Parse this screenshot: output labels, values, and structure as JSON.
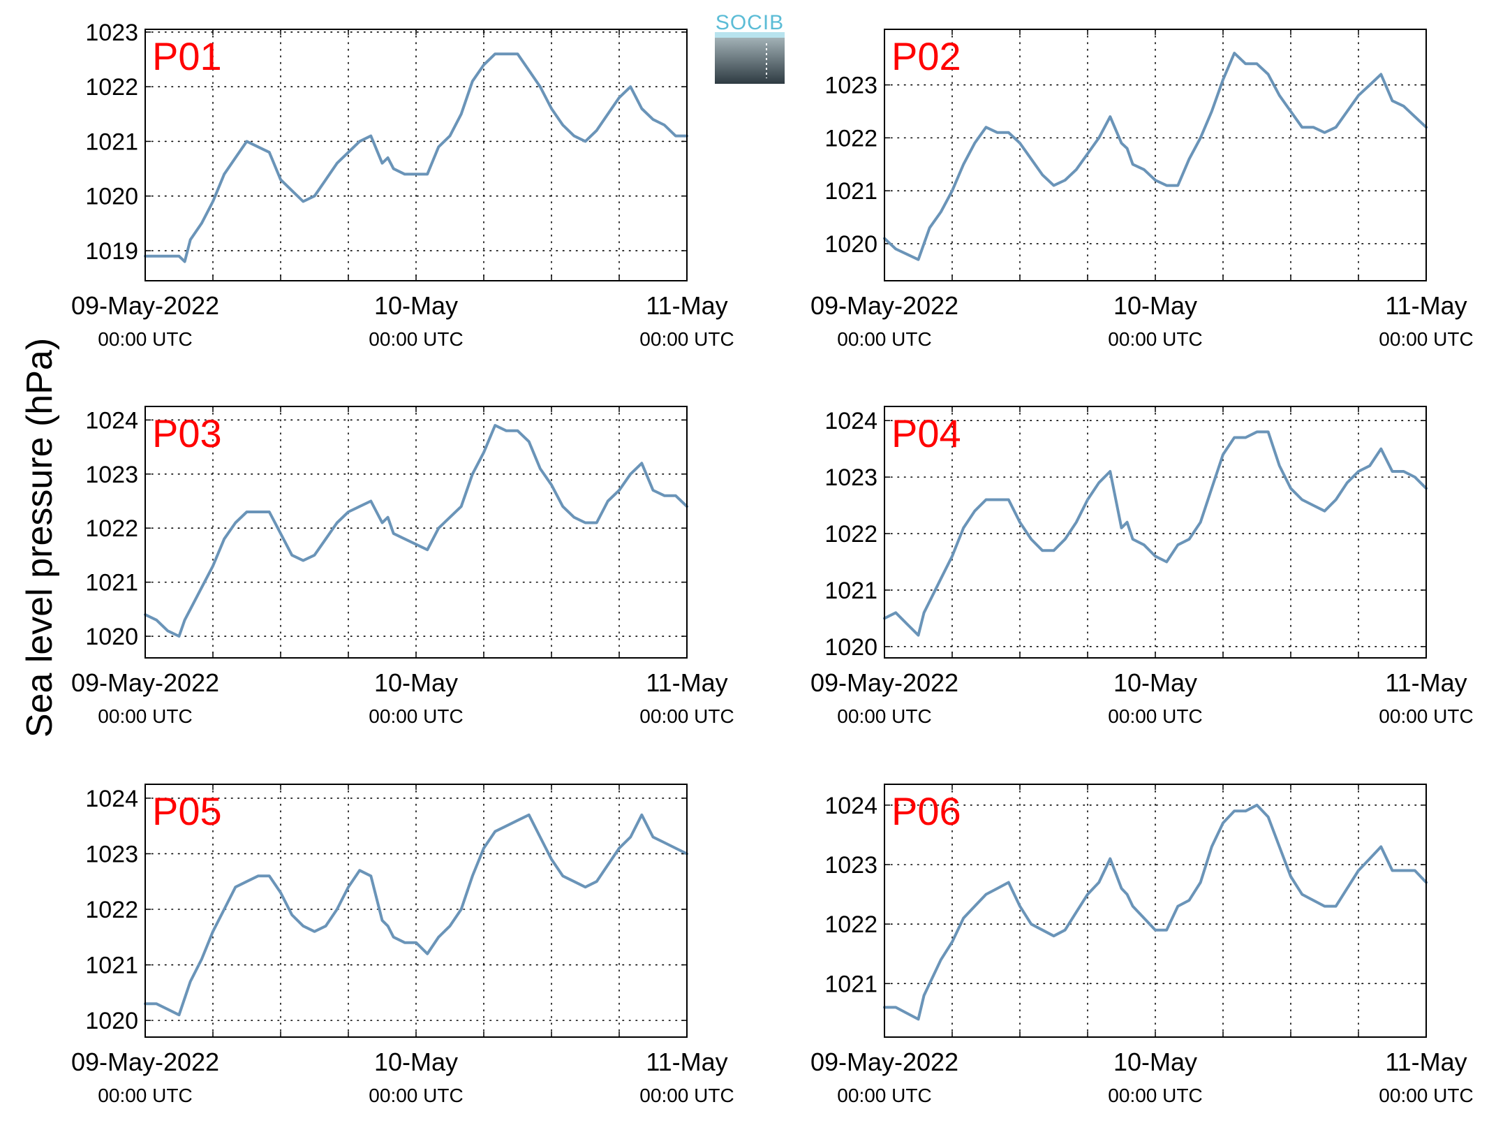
{
  "figure": {
    "ylabel": "Sea level pressure (hPa)",
    "logo_text": "SOCIB",
    "colors": {
      "line": "#6a94b8",
      "panel_label": "#ff0000",
      "axis": "#000000",
      "logo_text": "#5bbcd6",
      "logo_top": "#a9b8bd",
      "logo_bottom": "#2e3b42"
    }
  },
  "chart_data": [
    {
      "type": "line",
      "label": "P01",
      "ylim": [
        1018.45,
        1023.05
      ],
      "yticks": [
        1019,
        1020,
        1021,
        1022,
        1023
      ],
      "xlim": [
        0,
        48
      ],
      "xticks_major": [
        0,
        24,
        48
      ],
      "grid": true,
      "xticklabels": [
        [
          "09-May-2022",
          "00:00 UTC"
        ],
        [
          "10-May",
          "00:00 UTC"
        ],
        [
          "11-May",
          "00:00 UTC"
        ]
      ],
      "x": [
        0,
        1,
        2,
        3,
        3.5,
        4,
        5,
        6,
        7,
        8,
        9,
        10,
        11,
        12,
        13,
        14,
        15,
        16,
        17,
        18,
        19,
        20,
        21,
        21.5,
        22,
        23,
        24,
        25,
        26,
        27,
        28,
        29,
        30,
        31,
        32,
        33,
        34,
        35,
        36,
        37,
        38,
        39,
        40,
        41,
        42,
        43,
        44,
        45,
        46,
        47,
        48
      ],
      "y": [
        1018.9,
        1018.9,
        1018.9,
        1018.9,
        1018.8,
        1019.2,
        1019.5,
        1019.9,
        1020.4,
        1020.7,
        1021.0,
        1020.9,
        1020.8,
        1020.3,
        1020.1,
        1019.9,
        1020.0,
        1020.3,
        1020.6,
        1020.8,
        1021.0,
        1021.1,
        1020.6,
        1020.7,
        1020.5,
        1020.4,
        1020.4,
        1020.4,
        1020.9,
        1021.1,
        1021.5,
        1022.1,
        1022.4,
        1022.6,
        1022.6,
        1022.6,
        1022.3,
        1022.0,
        1021.6,
        1021.3,
        1021.1,
        1021.0,
        1021.2,
        1021.5,
        1021.8,
        1022.0,
        1021.6,
        1021.4,
        1021.3,
        1021.1,
        1021.1
      ]
    },
    {
      "type": "line",
      "label": "P02",
      "ylim": [
        1019.3,
        1024.05
      ],
      "yticks": [
        1020,
        1021,
        1022,
        1023
      ],
      "xlim": [
        0,
        48
      ],
      "xticks_major": [
        0,
        24,
        48
      ],
      "grid": true,
      "xticklabels": [
        [
          "09-May-2022",
          "00:00 UTC"
        ],
        [
          "10-May",
          "00:00 UTC"
        ],
        [
          "11-May",
          "00:00 UTC"
        ]
      ],
      "x": [
        0,
        1,
        2,
        3,
        3.5,
        4,
        5,
        6,
        7,
        8,
        9,
        10,
        11,
        12,
        13,
        14,
        15,
        16,
        17,
        18,
        19,
        20,
        21,
        21.5,
        22,
        23,
        24,
        25,
        26,
        27,
        28,
        29,
        30,
        31,
        32,
        33,
        34,
        35,
        36,
        37,
        38,
        39,
        40,
        41,
        42,
        43,
        44,
        45,
        46,
        47,
        48
      ],
      "y": [
        1020.1,
        1019.9,
        1019.8,
        1019.7,
        1020.0,
        1020.3,
        1020.6,
        1021.0,
        1021.5,
        1021.9,
        1022.2,
        1022.1,
        1022.1,
        1021.9,
        1021.6,
        1021.3,
        1021.1,
        1021.2,
        1021.4,
        1021.7,
        1022.0,
        1022.4,
        1021.9,
        1021.8,
        1021.5,
        1021.4,
        1021.2,
        1021.1,
        1021.1,
        1021.6,
        1022.0,
        1022.5,
        1023.1,
        1023.6,
        1023.4,
        1023.4,
        1023.2,
        1022.8,
        1022.5,
        1022.2,
        1022.2,
        1022.1,
        1022.2,
        1022.5,
        1022.8,
        1023.0,
        1023.2,
        1022.7,
        1022.6,
        1022.4,
        1022.2
      ]
    },
    {
      "type": "line",
      "label": "P03",
      "ylim": [
        1019.6,
        1024.25
      ],
      "yticks": [
        1020,
        1021,
        1022,
        1023,
        1024
      ],
      "xlim": [
        0,
        48
      ],
      "xticks_major": [
        0,
        24,
        48
      ],
      "grid": true,
      "xticklabels": [
        [
          "09-May-2022",
          "00:00 UTC"
        ],
        [
          "10-May",
          "00:00 UTC"
        ],
        [
          "11-May",
          "00:00 UTC"
        ]
      ],
      "x": [
        0,
        1,
        2,
        3,
        3.5,
        4,
        5,
        6,
        7,
        8,
        9,
        10,
        11,
        12,
        13,
        14,
        15,
        16,
        17,
        18,
        19,
        20,
        21,
        21.5,
        22,
        23,
        24,
        25,
        26,
        27,
        28,
        29,
        30,
        31,
        32,
        33,
        34,
        35,
        36,
        37,
        38,
        39,
        40,
        41,
        42,
        43,
        44,
        45,
        46,
        47,
        48
      ],
      "y": [
        1020.4,
        1020.3,
        1020.1,
        1020.0,
        1020.3,
        1020.5,
        1020.9,
        1021.3,
        1021.8,
        1022.1,
        1022.3,
        1022.3,
        1022.3,
        1021.9,
        1021.5,
        1021.4,
        1021.5,
        1021.8,
        1022.1,
        1022.3,
        1022.4,
        1022.5,
        1022.1,
        1022.2,
        1021.9,
        1021.8,
        1021.7,
        1021.6,
        1022.0,
        1022.2,
        1022.4,
        1023.0,
        1023.4,
        1023.9,
        1023.8,
        1023.8,
        1023.6,
        1023.1,
        1022.8,
        1022.4,
        1022.2,
        1022.1,
        1022.1,
        1022.5,
        1022.7,
        1023.0,
        1023.2,
        1022.7,
        1022.6,
        1022.6,
        1022.4
      ]
    },
    {
      "type": "line",
      "label": "P04",
      "ylim": [
        1019.8,
        1024.25
      ],
      "yticks": [
        1020,
        1021,
        1022,
        1023,
        1024
      ],
      "xlim": [
        0,
        48
      ],
      "xticks_major": [
        0,
        24,
        48
      ],
      "grid": true,
      "xticklabels": [
        [
          "09-May-2022",
          "00:00 UTC"
        ],
        [
          "10-May",
          "00:00 UTC"
        ],
        [
          "11-May",
          "00:00 UTC"
        ]
      ],
      "x": [
        0,
        1,
        2,
        3,
        3.5,
        4,
        5,
        6,
        7,
        8,
        9,
        10,
        11,
        12,
        13,
        14,
        15,
        16,
        17,
        18,
        19,
        20,
        21,
        21.5,
        22,
        23,
        24,
        25,
        26,
        27,
        28,
        29,
        30,
        31,
        32,
        33,
        34,
        35,
        36,
        37,
        38,
        39,
        40,
        41,
        42,
        43,
        44,
        45,
        46,
        47,
        48
      ],
      "y": [
        1020.5,
        1020.6,
        1020.4,
        1020.2,
        1020.6,
        1020.8,
        1021.2,
        1021.6,
        1022.1,
        1022.4,
        1022.6,
        1022.6,
        1022.6,
        1022.2,
        1021.9,
        1021.7,
        1021.7,
        1021.9,
        1022.2,
        1022.6,
        1022.9,
        1023.1,
        1022.1,
        1022.2,
        1021.9,
        1021.8,
        1021.6,
        1021.5,
        1021.8,
        1021.9,
        1022.2,
        1022.8,
        1023.4,
        1023.7,
        1023.7,
        1023.8,
        1023.8,
        1023.2,
        1022.8,
        1022.6,
        1022.5,
        1022.4,
        1022.6,
        1022.9,
        1023.1,
        1023.2,
        1023.5,
        1023.1,
        1023.1,
        1023.0,
        1022.8
      ]
    },
    {
      "type": "line",
      "label": "P05",
      "ylim": [
        1019.7,
        1024.25
      ],
      "yticks": [
        1020,
        1021,
        1022,
        1023,
        1024
      ],
      "xlim": [
        0,
        48
      ],
      "xticks_major": [
        0,
        24,
        48
      ],
      "grid": true,
      "xticklabels": [
        [
          "09-May-2022",
          "00:00 UTC"
        ],
        [
          "10-May",
          "00:00 UTC"
        ],
        [
          "11-May",
          "00:00 UTC"
        ]
      ],
      "x": [
        0,
        1,
        2,
        3,
        3.5,
        4,
        5,
        6,
        7,
        8,
        9,
        10,
        11,
        12,
        13,
        14,
        15,
        16,
        17,
        18,
        19,
        20,
        21,
        21.5,
        22,
        23,
        24,
        25,
        26,
        27,
        28,
        29,
        30,
        31,
        32,
        33,
        34,
        35,
        36,
        37,
        38,
        39,
        40,
        41,
        42,
        43,
        44,
        45,
        46,
        47,
        48
      ],
      "y": [
        1020.3,
        1020.3,
        1020.2,
        1020.1,
        1020.4,
        1020.7,
        1021.1,
        1021.6,
        1022.0,
        1022.4,
        1022.5,
        1022.6,
        1022.6,
        1022.3,
        1021.9,
        1021.7,
        1021.6,
        1021.7,
        1022.0,
        1022.4,
        1022.7,
        1022.6,
        1021.8,
        1021.7,
        1021.5,
        1021.4,
        1021.4,
        1021.2,
        1021.5,
        1021.7,
        1022.0,
        1022.6,
        1023.1,
        1023.4,
        1023.5,
        1023.6,
        1023.7,
        1023.3,
        1022.9,
        1022.6,
        1022.5,
        1022.4,
        1022.5,
        1022.8,
        1023.1,
        1023.3,
        1023.7,
        1023.3,
        1023.2,
        1023.1,
        1023.0
      ]
    },
    {
      "type": "line",
      "label": "P06",
      "ylim": [
        1020.1,
        1024.35
      ],
      "yticks": [
        1021,
        1022,
        1023,
        1024
      ],
      "xlim": [
        0,
        48
      ],
      "xticks_major": [
        0,
        24,
        48
      ],
      "grid": true,
      "xticklabels": [
        [
          "09-May-2022",
          "00:00 UTC"
        ],
        [
          "10-May",
          "00:00 UTC"
        ],
        [
          "11-May",
          "00:00 UTC"
        ]
      ],
      "x": [
        0,
        1,
        2,
        3,
        3.5,
        4,
        5,
        6,
        7,
        8,
        9,
        10,
        11,
        12,
        13,
        14,
        15,
        16,
        17,
        18,
        19,
        20,
        21,
        21.5,
        22,
        23,
        24,
        25,
        26,
        27,
        28,
        29,
        30,
        31,
        32,
        33,
        34,
        35,
        36,
        37,
        38,
        39,
        40,
        41,
        42,
        43,
        44,
        45,
        46,
        47,
        48
      ],
      "y": [
        1020.6,
        1020.6,
        1020.5,
        1020.4,
        1020.8,
        1021.0,
        1021.4,
        1021.7,
        1022.1,
        1022.3,
        1022.5,
        1022.6,
        1022.7,
        1022.3,
        1022.0,
        1021.9,
        1021.8,
        1021.9,
        1022.2,
        1022.5,
        1022.7,
        1023.1,
        1022.6,
        1022.5,
        1022.3,
        1022.1,
        1021.9,
        1021.9,
        1022.3,
        1022.4,
        1022.7,
        1023.3,
        1023.7,
        1023.9,
        1023.9,
        1024.0,
        1023.8,
        1023.3,
        1022.8,
        1022.5,
        1022.4,
        1022.3,
        1022.3,
        1022.6,
        1022.9,
        1023.1,
        1023.3,
        1022.9,
        1022.9,
        1022.9,
        1022.7
      ]
    }
  ]
}
